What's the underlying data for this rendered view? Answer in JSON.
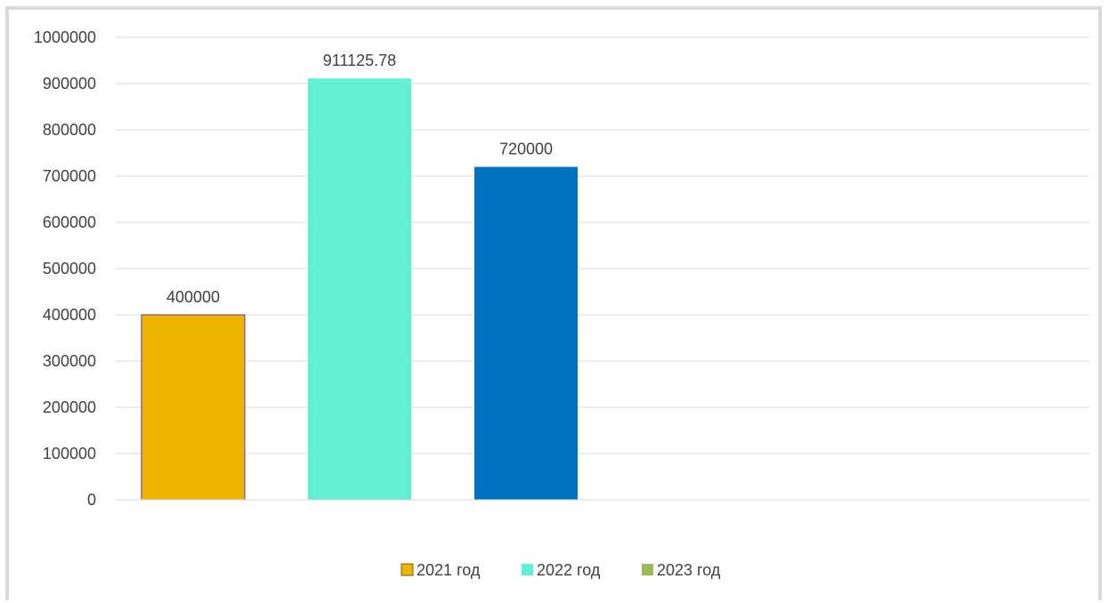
{
  "chart_data": {
    "type": "bar",
    "title": "",
    "xlabel": "",
    "ylabel": "",
    "ylim": [
      0,
      1000000
    ],
    "yticks": [
      0,
      100000,
      200000,
      300000,
      400000,
      500000,
      600000,
      700000,
      800000,
      900000,
      1000000
    ],
    "grid": true,
    "legend_position": "bottom",
    "series": [
      {
        "name": "2021 год",
        "value": 400000,
        "label": "400000",
        "color": "#EDB400",
        "border": "#7030A0"
      },
      {
        "name": "2022 год",
        "value": 911125.78,
        "label": "911125.78",
        "color": "#60F0D4"
      },
      {
        "name": "2023 год",
        "value": 720000,
        "label": "720000",
        "color": "#0070C0"
      }
    ],
    "legend": [
      {
        "name": "2021 год",
        "color": "#EDB400",
        "border": "#7F6000"
      },
      {
        "name": "2022 год",
        "color": "#60F0D4"
      },
      {
        "name": "2023 год",
        "color": "#9BBB59"
      }
    ]
  }
}
